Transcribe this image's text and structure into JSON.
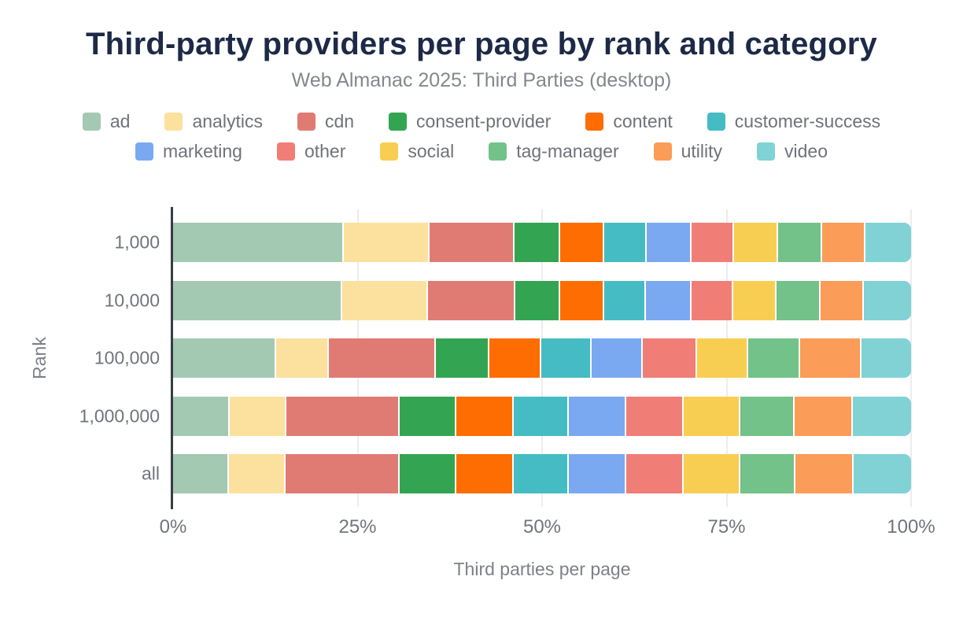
{
  "chart_data": {
    "type": "bar",
    "stacked": true,
    "orientation": "horizontal",
    "title": "Third-party providers per page by rank and category",
    "subtitle": "Web Almanac 2025: Third Parties (desktop)",
    "xlabel": "Third parties per page",
    "ylabel": "Rank",
    "xlim": [
      0,
      100
    ],
    "x_ticks": [
      "0%",
      "25%",
      "50%",
      "75%",
      "100%"
    ],
    "x_tick_positions": [
      0,
      25,
      50,
      75,
      100
    ],
    "grid": "vertical",
    "legend_position": "top",
    "categories": [
      "1,000",
      "10,000",
      "100,000",
      "1,000,000",
      "all"
    ],
    "unit": "percent of third parties per page",
    "series": [
      {
        "name": "ad",
        "color": "#a4c9b2",
        "values": [
          23.5,
          23.3,
          14.1,
          7.6,
          7.5
        ]
      },
      {
        "name": "analytics",
        "color": "#fbe19d",
        "values": [
          11.7,
          11.6,
          7.1,
          7.7,
          7.7
        ]
      },
      {
        "name": "cdn",
        "color": "#e07b73",
        "values": [
          11.5,
          11.9,
          14.6,
          15.5,
          15.6
        ]
      },
      {
        "name": "consent-provider",
        "color": "#33a552",
        "values": [
          6.1,
          6.0,
          7.2,
          7.6,
          7.6
        ]
      },
      {
        "name": "content",
        "color": "#fd6d02",
        "values": [
          5.9,
          5.9,
          7.0,
          7.8,
          7.8
        ]
      },
      {
        "name": "customer-success",
        "color": "#45bcc3",
        "values": [
          5.7,
          5.6,
          6.8,
          7.4,
          7.4
        ]
      },
      {
        "name": "marketing",
        "color": "#7aa9f2",
        "values": [
          6.0,
          6.1,
          6.9,
          7.7,
          7.7
        ]
      },
      {
        "name": "other",
        "color": "#f07e76",
        "values": [
          5.7,
          5.6,
          7.3,
          7.8,
          7.8
        ]
      },
      {
        "name": "social",
        "color": "#f8ce52",
        "values": [
          5.9,
          5.8,
          6.8,
          7.6,
          7.6
        ]
      },
      {
        "name": "tag-manager",
        "color": "#72c289",
        "values": [
          5.9,
          5.9,
          7.0,
          7.4,
          7.5
        ]
      },
      {
        "name": "utility",
        "color": "#fb9c58",
        "values": [
          5.8,
          5.7,
          8.3,
          7.8,
          7.8
        ]
      },
      {
        "name": "video",
        "color": "#80d2d5",
        "values": [
          6.3,
          6.6,
          6.9,
          8.1,
          8.0
        ]
      }
    ],
    "axis_colors": {
      "axis_line": "#373c45",
      "gridline": "#ececec",
      "tick_text": "#70747c"
    },
    "title_color": "#1d2a47"
  }
}
